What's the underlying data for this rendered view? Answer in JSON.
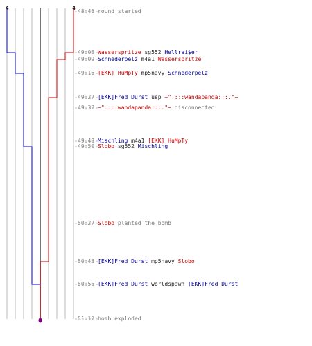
{
  "colors": {
    "ct": "#0000cc",
    "t": "#cc0000",
    "grid": "#bbbbbb",
    "divider": "#777777",
    "bomb": "#800080",
    "time": "#888888"
  },
  "counters": {
    "ct_start": "4",
    "t_start": "4"
  },
  "events": [
    {
      "time": "48:46",
      "parts": [
        {
          "text": "round started",
          "class": "c-gray"
        }
      ]
    },
    {
      "time": "49:06",
      "parts": [
        {
          "text": "Wasserspritze",
          "class": "c-red"
        },
        {
          "text": " sg552 ",
          "class": "c-dark"
        },
        {
          "text": "Hellrai$er",
          "class": "c-blue"
        }
      ]
    },
    {
      "time": "49:09",
      "parts": [
        {
          "text": "Schnederpelz",
          "class": "c-blue"
        },
        {
          "text": " m4a1 ",
          "class": "c-dark"
        },
        {
          "text": "Wasserspritze",
          "class": "c-red"
        }
      ]
    },
    {
      "time": "49:16",
      "parts": [
        {
          "text": "[EKK] HuMpTy",
          "class": "c-red"
        },
        {
          "text": " mp5navy ",
          "class": "c-dark"
        },
        {
          "text": "Schnederpelz",
          "class": "c-blue"
        }
      ]
    },
    {
      "time": "49:27",
      "parts": [
        {
          "text": "[EKK]Fred Durst",
          "class": "c-blue"
        },
        {
          "text": " usp ",
          "class": "c-dark"
        },
        {
          "text": "~\".:::wandapanda:::.\"~",
          "class": "c-red"
        }
      ]
    },
    {
      "time": "49:32",
      "parts": [
        {
          "text": "~\".:::wandapanda:::.\"~",
          "class": "c-red"
        },
        {
          "text": " disconnected",
          "class": "c-gray"
        }
      ]
    },
    {
      "time": "49:48",
      "parts": [
        {
          "text": "Mischling",
          "class": "c-blue"
        },
        {
          "text": " m4a1 ",
          "class": "c-dark"
        },
        {
          "text": "[EKK] HuMpTy",
          "class": "c-red"
        }
      ]
    },
    {
      "time": "49:50",
      "parts": [
        {
          "text": "Slobo",
          "class": "c-red"
        },
        {
          "text": " sg552 ",
          "class": "c-dark"
        },
        {
          "text": "Mischling",
          "class": "c-blue"
        }
      ]
    },
    {
      "time": "50:27",
      "parts": [
        {
          "text": "Slobo",
          "class": "c-red"
        },
        {
          "text": " planted the bomb",
          "class": "c-gray"
        }
      ]
    },
    {
      "time": "50:45",
      "parts": [
        {
          "text": "[EKK]Fred Durst",
          "class": "c-blue"
        },
        {
          "text": " mp5navy ",
          "class": "c-dark"
        },
        {
          "text": "Slobo",
          "class": "c-red"
        }
      ]
    },
    {
      "time": "50:56",
      "parts": [
        {
          "text": "[EKK]Fred Durst",
          "class": "c-blue"
        },
        {
          "text": " worldspawn ",
          "class": "c-dark"
        },
        {
          "text": "[EKK]Fred Durst",
          "class": "c-blue"
        }
      ]
    },
    {
      "time": "51:12",
      "parts": [
        {
          "text": "bomb exploded",
          "class": "c-gray"
        }
      ]
    }
  ]
}
